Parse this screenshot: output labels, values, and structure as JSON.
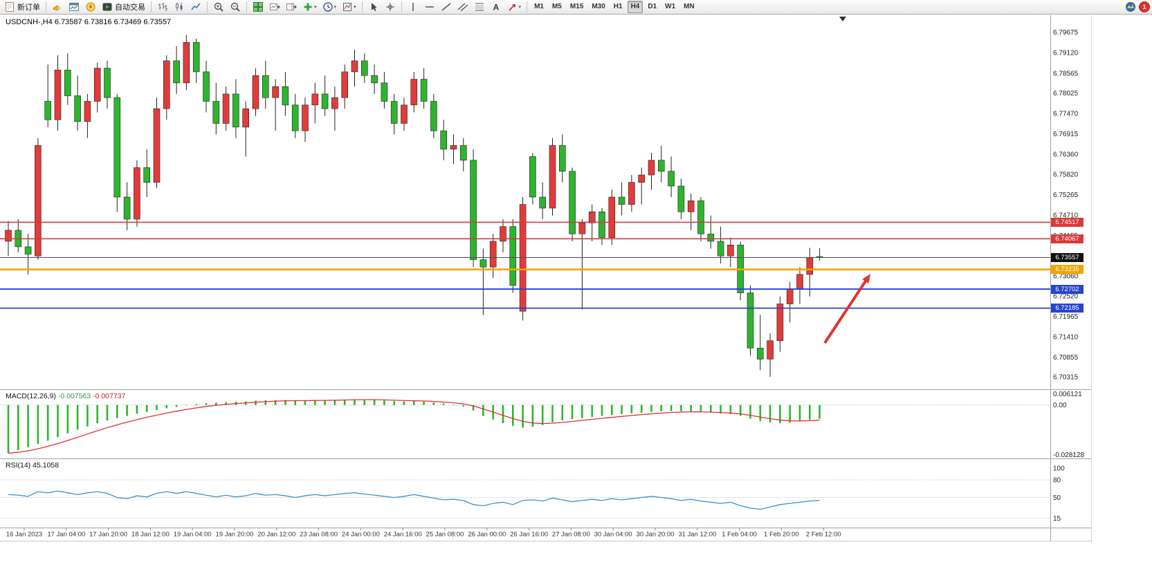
{
  "toolbar": {
    "notification_count": "1",
    "active_timeframe": "H4",
    "timeframes": [
      "M1",
      "M5",
      "M15",
      "M30",
      "H1",
      "H4",
      "D1",
      "W1",
      "MN"
    ],
    "groups": [
      {
        "items": [
          {
            "name": "new-order",
            "icon": "new-order-icon",
            "label": "新订单"
          }
        ]
      },
      {
        "items": [
          {
            "name": "alerts",
            "icon": "horn-icon"
          },
          {
            "name": "market-watch",
            "icon": "chart-window-icon"
          },
          {
            "name": "navigator",
            "icon": "navigator-icon"
          },
          {
            "name": "autotrading",
            "icon": "autotrading-icon",
            "label": "自动交易"
          }
        ]
      },
      {
        "items": [
          {
            "name": "bar-chart",
            "icon": "bar-chart-icon"
          },
          {
            "name": "candle-chart",
            "icon": "candle-chart-icon"
          },
          {
            "name": "line-chart",
            "icon": "line-chart-icon"
          }
        ]
      },
      {
        "items": [
          {
            "name": "zoom-in",
            "icon": "zoom-in-icon"
          },
          {
            "name": "zoom-out",
            "icon": "zoom-out-icon"
          }
        ]
      },
      {
        "items": [
          {
            "name": "tile-windows",
            "icon": "tile-windows-icon"
          },
          {
            "name": "auto-scroll",
            "icon": "auto-scroll-icon"
          },
          {
            "name": "chart-shift",
            "icon": "chart-shift-icon"
          },
          {
            "name": "indicators",
            "icon": "indicators-icon",
            "dropdown": true
          },
          {
            "name": "periods",
            "icon": "periods-icon",
            "dropdown": true
          },
          {
            "name": "templates",
            "icon": "templates-icon",
            "dropdown": true
          }
        ]
      },
      {
        "items": [
          {
            "name": "cursor",
            "icon": "cursor-icon"
          },
          {
            "name": "crosshair",
            "icon": "crosshair-icon"
          }
        ]
      },
      {
        "items": [
          {
            "name": "vertical-line",
            "icon": "vertical-line-icon"
          },
          {
            "name": "horizontal-line",
            "icon": "horizontal-line-icon"
          },
          {
            "name": "trendline",
            "icon": "trendline-icon"
          },
          {
            "name": "channel",
            "icon": "channel-icon"
          },
          {
            "name": "fibonacci",
            "icon": "fibonacci-icon"
          },
          {
            "name": "text",
            "icon": "text-icon"
          },
          {
            "name": "arrows",
            "icon": "arrows-icon",
            "dropdown": true
          }
        ]
      }
    ]
  },
  "chart": {
    "symbol": "USDCNH-",
    "period": "H4",
    "title": "USDCNH-,H4 6.73587 6.73816 6.73469 6.73557",
    "ohlc": {
      "open": "6.73587",
      "high": "6.73816",
      "low": "6.73469",
      "close": "6.73557"
    }
  },
  "price_axis": {
    "labels": [
      "6.79675",
      "6.79120",
      "6.78565",
      "6.78025",
      "6.77470",
      "6.76915",
      "6.76360",
      "6.75820",
      "6.75265",
      "6.74710",
      "6.74155",
      "6.73600",
      "6.73060",
      "6.72520",
      "6.71965",
      "6.71410",
      "6.70855",
      "6.70315"
    ],
    "markers": [
      {
        "value": "6.74517",
        "price": 6.74517,
        "color": "#d83a3a"
      },
      {
        "value": "6.74067",
        "price": 6.74067,
        "color": "#d83a3a"
      },
      {
        "value": "6.73557",
        "price": 6.73557,
        "color": "#111111"
      },
      {
        "value": "6.73235",
        "price": 6.73235,
        "color": "#f5a300"
      },
      {
        "value": "6.72702",
        "price": 6.72702,
        "color": "#2743cf"
      },
      {
        "value": "6.72185",
        "price": 6.72185,
        "color": "#2743cf"
      }
    ]
  },
  "chart_data": {
    "type": "candlestick",
    "symbol": "USDCNH",
    "timeframe": "H4",
    "price_range": [
      6.7,
      6.801
    ],
    "bull_color": "#e23b3b",
    "bear_color": "#2db52d",
    "candles": [
      [
        6.74,
        6.7455,
        6.736,
        6.743
      ],
      [
        6.743,
        6.746,
        6.737,
        6.7385
      ],
      [
        6.7385,
        6.742,
        6.731,
        6.7365
      ],
      [
        6.736,
        6.768,
        6.735,
        6.766
      ],
      [
        6.778,
        6.788,
        6.771,
        6.773
      ],
      [
        6.773,
        6.7905,
        6.77,
        6.7865
      ],
      [
        6.7865,
        6.791,
        6.777,
        6.7795
      ],
      [
        6.7795,
        6.785,
        6.77,
        6.7725
      ],
      [
        6.7725,
        6.78,
        6.768,
        6.778
      ],
      [
        6.778,
        6.7885,
        6.775,
        6.787
      ],
      [
        6.787,
        6.789,
        6.776,
        6.779
      ],
      [
        6.779,
        6.78,
        6.748,
        6.752
      ],
      [
        6.752,
        6.756,
        6.743,
        6.746
      ],
      [
        6.746,
        6.762,
        6.744,
        6.76
      ],
      [
        6.76,
        6.765,
        6.752,
        6.756
      ],
      [
        6.756,
        6.779,
        6.7545,
        6.776
      ],
      [
        6.776,
        6.7905,
        6.773,
        6.789
      ],
      [
        6.789,
        6.793,
        6.78,
        6.783
      ],
      [
        6.783,
        6.796,
        6.781,
        6.794
      ],
      [
        6.794,
        6.795,
        6.783,
        6.786
      ],
      [
        6.786,
        6.789,
        6.775,
        6.778
      ],
      [
        6.778,
        6.783,
        6.769,
        6.772
      ],
      [
        6.772,
        6.782,
        6.77,
        6.78
      ],
      [
        6.78,
        6.784,
        6.768,
        6.771
      ],
      [
        6.771,
        6.778,
        6.763,
        6.776
      ],
      [
        6.776,
        6.787,
        6.774,
        6.785
      ],
      [
        6.785,
        6.789,
        6.776,
        6.779
      ],
      [
        6.779,
        6.784,
        6.77,
        6.782
      ],
      [
        6.782,
        6.786,
        6.774,
        6.777
      ],
      [
        6.777,
        6.78,
        6.768,
        6.77
      ],
      [
        6.77,
        6.779,
        6.767,
        6.777
      ],
      [
        6.777,
        6.783,
        6.772,
        6.78
      ],
      [
        6.78,
        6.785,
        6.774,
        6.776
      ],
      [
        6.776,
        6.782,
        6.77,
        6.779
      ],
      [
        6.779,
        6.788,
        6.776,
        6.786
      ],
      [
        6.786,
        6.792,
        6.782,
        6.789
      ],
      [
        6.789,
        6.791,
        6.783,
        6.785
      ],
      [
        6.785,
        6.788,
        6.78,
        6.783
      ],
      [
        6.783,
        6.786,
        6.776,
        6.778
      ],
      [
        6.778,
        6.78,
        6.769,
        6.772
      ],
      [
        6.772,
        6.779,
        6.77,
        6.777
      ],
      [
        6.777,
        6.786,
        6.775,
        6.784
      ],
      [
        6.784,
        6.787,
        6.776,
        6.778
      ],
      [
        6.778,
        6.78,
        6.768,
        6.77
      ],
      [
        6.77,
        6.773,
        6.762,
        6.765
      ],
      [
        6.765,
        6.769,
        6.761,
        6.766
      ],
      [
        6.766,
        6.768,
        6.759,
        6.762
      ],
      [
        6.762,
        6.765,
        6.733,
        6.735
      ],
      [
        6.735,
        6.738,
        6.72,
        6.733
      ],
      [
        6.733,
        6.742,
        6.73,
        6.74
      ],
      [
        6.74,
        6.746,
        6.737,
        6.744
      ],
      [
        6.744,
        6.746,
        6.726,
        6.728
      ],
      [
        6.721,
        6.752,
        6.7185,
        6.75
      ],
      [
        6.763,
        6.764,
        6.75,
        6.752
      ],
      [
        6.752,
        6.756,
        6.746,
        6.749
      ],
      [
        6.749,
        6.768,
        6.747,
        6.766
      ],
      [
        6.766,
        6.769,
        6.756,
        6.759
      ],
      [
        6.759,
        6.76,
        6.74,
        6.742
      ],
      [
        6.742,
        6.746,
        6.7215,
        6.745
      ],
      [
        6.745,
        6.75,
        6.74,
        6.748
      ],
      [
        6.748,
        6.749,
        6.739,
        6.741
      ],
      [
        6.741,
        6.754,
        6.739,
        6.752
      ],
      [
        6.752,
        6.756,
        6.747,
        6.75
      ],
      [
        6.75,
        6.758,
        6.748,
        6.756
      ],
      [
        6.756,
        6.76,
        6.75,
        6.758
      ],
      [
        6.758,
        6.764,
        6.754,
        6.762
      ],
      [
        6.762,
        6.766,
        6.756,
        6.759
      ],
      [
        6.759,
        6.763,
        6.752,
        6.755
      ],
      [
        6.755,
        6.757,
        6.746,
        6.748
      ],
      [
        6.748,
        6.753,
        6.743,
        6.751
      ],
      [
        6.751,
        6.752,
        6.74,
        6.742
      ],
      [
        6.742,
        6.747,
        6.738,
        6.74
      ],
      [
        6.74,
        6.744,
        6.734,
        6.736
      ],
      [
        6.736,
        6.741,
        6.733,
        6.739
      ],
      [
        6.739,
        6.74,
        6.724,
        6.726
      ],
      [
        6.726,
        6.728,
        6.709,
        6.711
      ],
      [
        6.711,
        6.72,
        6.705,
        6.708
      ],
      [
        6.708,
        6.715,
        6.7032,
        6.713
      ],
      [
        6.713,
        6.725,
        6.71,
        6.723
      ],
      [
        6.723,
        6.729,
        6.718,
        6.727
      ],
      [
        6.727,
        6.733,
        6.723,
        6.731
      ],
      [
        6.731,
        6.7382,
        6.725,
        6.7355
      ],
      [
        6.73587,
        6.73816,
        6.73469,
        6.73557
      ]
    ],
    "hlines": [
      {
        "price": 6.74517,
        "color": "#d83a3a",
        "width": 1.6
      },
      {
        "price": 6.74067,
        "color": "#d83a3a",
        "width": 1.6
      },
      {
        "price": 6.73557,
        "color": "#4a4a4a",
        "width": 1
      },
      {
        "price": 6.73235,
        "color": "#f5a300",
        "width": 2.6
      },
      {
        "price": 6.72702,
        "color": "#2743cf",
        "width": 1.8
      },
      {
        "price": 6.72185,
        "color": "#2743cf",
        "width": 1.8
      }
    ],
    "arrow": {
      "from": [
        1192,
        496
      ],
      "to": [
        1258,
        396
      ],
      "color": "#e03131",
      "width": 4
    },
    "macd": {
      "label": "MACD(12,26,9)",
      "value_main": "-0.007563",
      "value_signal": "-0.007737",
      "axis_labels": [
        {
          "text": "0.006121",
          "value": 0.006121
        },
        {
          "text": "0.00",
          "value": 0
        },
        {
          "text": "-0.028128",
          "value": -0.028128
        }
      ],
      "range": [
        0.0075,
        -0.029
      ],
      "histogram_color": "#2db52d",
      "signal_color": "#e03131",
      "histogram": [
        -0.0265,
        -0.0248,
        -0.0232,
        -0.0215,
        -0.0196,
        -0.0176,
        -0.0156,
        -0.0136,
        -0.0118,
        -0.01,
        -0.0085,
        -0.0072,
        -0.006,
        -0.0048,
        -0.0038,
        -0.0028,
        -0.0018,
        -0.001,
        -0.0002,
        0.0005,
        0.001,
        0.0013,
        0.0016,
        0.0018,
        0.002,
        0.0024,
        0.0026,
        0.0027,
        0.0028,
        0.0026,
        0.0025,
        0.0026,
        0.0027,
        0.0028,
        0.003,
        0.0032,
        0.0031,
        0.0029,
        0.0026,
        0.0022,
        0.002,
        0.0021,
        0.0019,
        0.0014,
        0.0008,
        0.0003,
        -0.0008,
        -0.003,
        -0.006,
        -0.008,
        -0.01,
        -0.0115,
        -0.0125,
        -0.012,
        -0.011,
        -0.0095,
        -0.0085,
        -0.0078,
        -0.0072,
        -0.0066,
        -0.006,
        -0.0055,
        -0.005,
        -0.0046,
        -0.0042,
        -0.0038,
        -0.0035,
        -0.0033,
        -0.0034,
        -0.0035,
        -0.0038,
        -0.0042,
        -0.0047,
        -0.005,
        -0.006,
        -0.0075,
        -0.0088,
        -0.0096,
        -0.01,
        -0.0097,
        -0.009,
        -0.0082,
        -0.00756
      ]
    },
    "rsi": {
      "label": "RSI(14)",
      "value": "45.1058",
      "line_color": "#3c8fd0",
      "axis_labels": [
        {
          "text": "100",
          "value": 100
        },
        {
          "text": "80",
          "value": 80
        },
        {
          "text": "50",
          "value": 50
        },
        {
          "text": "15",
          "value": 15
        }
      ],
      "levels": [
        80,
        50,
        15
      ],
      "range": [
        0,
        100
      ],
      "series": [
        55,
        54,
        52,
        60,
        58,
        61,
        58,
        55,
        58,
        60,
        57,
        50,
        48,
        53,
        51,
        57,
        60,
        57,
        60,
        57,
        54,
        51,
        54,
        51,
        53,
        57,
        54,
        55,
        53,
        50,
        53,
        55,
        53,
        55,
        57,
        58,
        56,
        54,
        52,
        50,
        52,
        55,
        52,
        49,
        46,
        47,
        45,
        38,
        36,
        40,
        42,
        38,
        45,
        46,
        44,
        49,
        46,
        43,
        45,
        47,
        45,
        48,
        46,
        48,
        50,
        52,
        50,
        48,
        45,
        47,
        44,
        42,
        40,
        42,
        36,
        32,
        30,
        34,
        38,
        40,
        42,
        44,
        45.1
      ]
    },
    "time_axis": [
      "16 Jan 2023",
      "17 Jan 04:00",
      "17 Jan 20:00",
      "18 Jan 12:00",
      "19 Jan 04:00",
      "19 Jan 20:00",
      "20 Jan 12:00",
      "23 Jan 08:00",
      "24 Jan 00:00",
      "24 Jan 16:00",
      "25 Jan 08:00",
      "26 Jan 00:00",
      "26 Jan 16:00",
      "27 Jan 08:00",
      "30 Jan 04:00",
      "30 Jan 20:00",
      "31 Jan 12:00",
      "1 Feb 04:00",
      "1 Feb 20:00",
      "2 Feb 12:00"
    ]
  }
}
